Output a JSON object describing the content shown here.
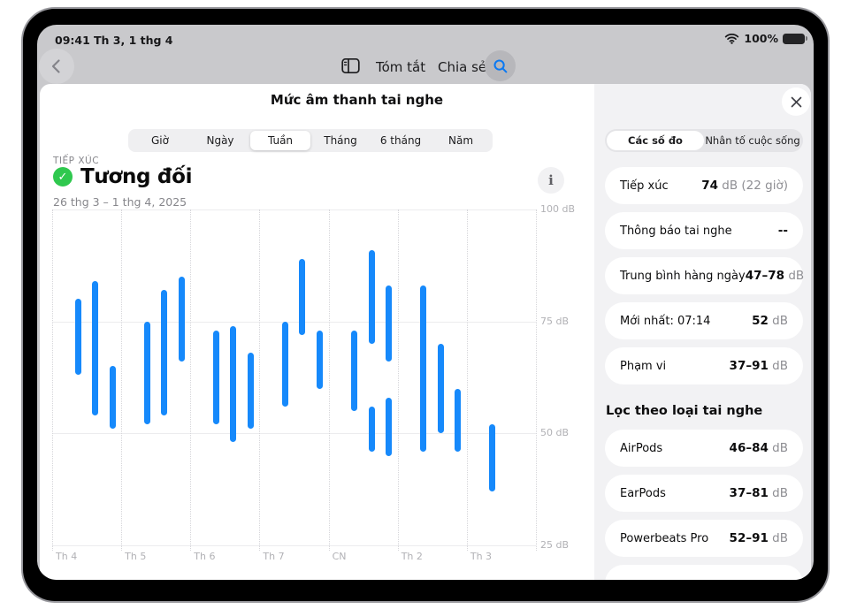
{
  "colors": {
    "accent_blue": "#1689fb",
    "green": "#2fc84e",
    "bar": "#1689fb",
    "sidebar_bg": "#f2f2f4",
    "backdrop": "#c9c9cc"
  },
  "icons": {
    "check": "✓",
    "info": "i"
  },
  "status_bar": {
    "time": "09:41",
    "date": "Th 3, 1 thg 4",
    "battery_percent": "100%"
  },
  "nav": {
    "summary_label": "Tóm tắt",
    "share_label": "Chia sẻ"
  },
  "sheet": {
    "title": "Mức âm thanh tai nghe"
  },
  "time_tabs": {
    "options": [
      "Giờ",
      "Ngày",
      "Tuần",
      "Tháng",
      "6 tháng",
      "Năm"
    ],
    "selected": "Tuần"
  },
  "exposure": {
    "eyebrow": "TIẾP XÚC",
    "status": "Tương đối",
    "date_range": "26 thg 3 – 1 thg 4, 2025"
  },
  "chart_data": {
    "type": "bar",
    "subtype": "vertical-range-bars",
    "title": "Mức âm thanh tai nghe — Tiếp xúc (Tuần)",
    "date_range": "26 thg 3 – 1 thg 4, 2025",
    "categories": [
      "Th 4",
      "Th 5",
      "Th 6",
      "Th 7",
      "CN",
      "Th 2",
      "Th 3"
    ],
    "ylabel": "dB",
    "ylim": [
      25,
      100
    ],
    "yticks": [
      100,
      75,
      50,
      25
    ],
    "ytick_labels": [
      "100 dB",
      "75 dB",
      "50 dB",
      "25 dB"
    ],
    "grid": true,
    "legend": false,
    "bar_color": "#1689fb",
    "bars": [
      {
        "day": "Th 4",
        "day_index": 0,
        "slot": 0,
        "min_db": 63,
        "max_db": 80
      },
      {
        "day": "Th 4",
        "day_index": 0,
        "slot": 1,
        "min_db": 54,
        "max_db": 84
      },
      {
        "day": "Th 4",
        "day_index": 0,
        "slot": 2,
        "min_db": 51,
        "max_db": 65
      },
      {
        "day": "Th 5",
        "day_index": 1,
        "slot": 0,
        "min_db": 52,
        "max_db": 75
      },
      {
        "day": "Th 5",
        "day_index": 1,
        "slot": 1,
        "min_db": 54,
        "max_db": 82
      },
      {
        "day": "Th 5",
        "day_index": 1,
        "slot": 2,
        "min_db": 66,
        "max_db": 85
      },
      {
        "day": "Th 6",
        "day_index": 2,
        "slot": 0,
        "min_db": 52,
        "max_db": 73
      },
      {
        "day": "Th 6",
        "day_index": 2,
        "slot": 1,
        "min_db": 48,
        "max_db": 74
      },
      {
        "day": "Th 6",
        "day_index": 2,
        "slot": 2,
        "min_db": 51,
        "max_db": 68
      },
      {
        "day": "Th 7",
        "day_index": 3,
        "slot": 0,
        "min_db": 56,
        "max_db": 75
      },
      {
        "day": "Th 7",
        "day_index": 3,
        "slot": 1,
        "min_db": 72,
        "max_db": 89
      },
      {
        "day": "Th 7",
        "day_index": 3,
        "slot": 2,
        "min_db": 60,
        "max_db": 73
      },
      {
        "day": "CN",
        "day_index": 4,
        "slot": 0,
        "min_db": 55,
        "max_db": 73
      },
      {
        "day": "CN",
        "day_index": 4,
        "slot": 1,
        "min_db": 70,
        "max_db": 91
      },
      {
        "day": "CN",
        "day_index": 4,
        "slot": 1,
        "min_db": 46,
        "max_db": 56
      },
      {
        "day": "CN",
        "day_index": 4,
        "slot": 2,
        "min_db": 66,
        "max_db": 83
      },
      {
        "day": "CN",
        "day_index": 4,
        "slot": 2,
        "min_db": 45,
        "max_db": 58
      },
      {
        "day": "Th 2",
        "day_index": 5,
        "slot": 0,
        "min_db": 46,
        "max_db": 83
      },
      {
        "day": "Th 2",
        "day_index": 5,
        "slot": 1,
        "min_db": 50,
        "max_db": 70
      },
      {
        "day": "Th 2",
        "day_index": 5,
        "slot": 2,
        "min_db": 46,
        "max_db": 60
      },
      {
        "day": "Th 3",
        "day_index": 6,
        "slot": 0,
        "min_db": 37,
        "max_db": 52
      }
    ]
  },
  "sidebar": {
    "tabs": {
      "options": [
        "Các số đo",
        "Nhân tố cuộc sống"
      ],
      "selected": "Các số đo"
    },
    "metrics": [
      {
        "label": "Tiếp xúc",
        "value": "74",
        "unit": " dB (22 giờ)"
      },
      {
        "label": "Thông báo tai nghe",
        "value": "--",
        "unit": ""
      },
      {
        "label": "Trung bình hàng ngày",
        "value": "47–78",
        "unit": " dB"
      },
      {
        "label": "Mới nhất: 07:14",
        "value": "52",
        "unit": " dB"
      },
      {
        "label": "Phạm vi",
        "value": "37–91",
        "unit": " dB"
      }
    ],
    "filter_header": "Lọc theo loại tai nghe",
    "filters": [
      {
        "label": "AirPods",
        "value": "46–84",
        "unit": " dB"
      },
      {
        "label": "EarPods",
        "value": "37–81",
        "unit": " dB"
      },
      {
        "label": "Powerbeats Pro",
        "value": "52–91",
        "unit": " dB"
      }
    ]
  }
}
